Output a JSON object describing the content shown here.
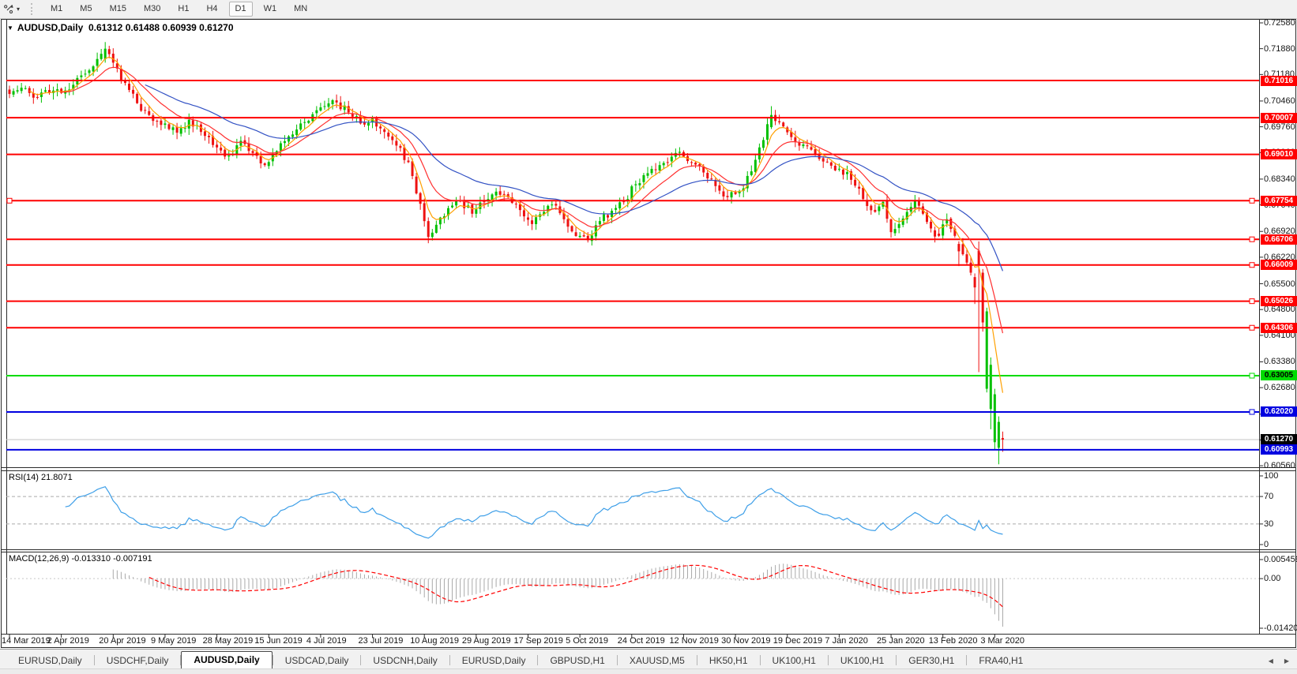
{
  "toolbar": {
    "timeframes": [
      "M1",
      "M5",
      "M15",
      "M30",
      "H1",
      "H4",
      "D1",
      "W1",
      "MN"
    ],
    "active_timeframe": "D1"
  },
  "chart": {
    "title": "AUDUSD,Daily",
    "ohlc": {
      "open": "0.61312",
      "high": "0.61488",
      "low": "0.60939",
      "close": "0.61270"
    }
  },
  "indicators": {
    "rsi_label": "RSI(14) 21.8071",
    "macd_label": "MACD(12,26,9) -0.013310 -0.007191"
  },
  "chart_data": {
    "type": "candlestick",
    "symbol": "AUDUSD",
    "timeframe": "Daily",
    "num_candles": 250,
    "last_candle": {
      "open": 0.61312,
      "high": 0.61488,
      "low": 0.60939,
      "close": 0.6127
    },
    "price_anchors": [
      [
        0,
        0.7065
      ],
      [
        3,
        0.7082
      ],
      [
        6,
        0.7055
      ],
      [
        9,
        0.7075
      ],
      [
        13,
        0.7068
      ],
      [
        16,
        0.709
      ],
      [
        19,
        0.712
      ],
      [
        22,
        0.716
      ],
      [
        24,
        0.7188
      ],
      [
        26,
        0.715
      ],
      [
        29,
        0.7095
      ],
      [
        32,
        0.704
      ],
      [
        35,
        0.7008
      ],
      [
        39,
        0.6985
      ],
      [
        42,
        0.696
      ],
      [
        45,
        0.6995
      ],
      [
        48,
        0.6962
      ],
      [
        52,
        0.692
      ],
      [
        55,
        0.6898
      ],
      [
        58,
        0.6938
      ],
      [
        61,
        0.6905
      ],
      [
        64,
        0.6872
      ],
      [
        67,
        0.691
      ],
      [
        70,
        0.695
      ],
      [
        73,
        0.6985
      ],
      [
        76,
        0.701
      ],
      [
        79,
        0.7032
      ],
      [
        82,
        0.7042
      ],
      [
        85,
        0.7015
      ],
      [
        88,
        0.6985
      ],
      [
        91,
        0.7
      ],
      [
        94,
        0.6962
      ],
      [
        97,
        0.6925
      ],
      [
        100,
        0.688
      ],
      [
        102,
        0.6795
      ],
      [
        104,
        0.672
      ],
      [
        105,
        0.6677
      ],
      [
        107,
        0.671
      ],
      [
        110,
        0.6755
      ],
      [
        113,
        0.6775
      ],
      [
        116,
        0.674
      ],
      [
        119,
        0.6772
      ],
      [
        122,
        0.68
      ],
      [
        125,
        0.6785
      ],
      [
        128,
        0.675
      ],
      [
        131,
        0.6712
      ],
      [
        134,
        0.6745
      ],
      [
        137,
        0.6762
      ],
      [
        140,
        0.6705
      ],
      [
        143,
        0.668
      ],
      [
        145,
        0.6668
      ],
      [
        148,
        0.672
      ],
      [
        151,
        0.6748
      ],
      [
        154,
        0.6772
      ],
      [
        157,
        0.682
      ],
      [
        160,
        0.685
      ],
      [
        163,
        0.6872
      ],
      [
        166,
        0.6895
      ],
      [
        168,
        0.6908
      ],
      [
        171,
        0.688
      ],
      [
        174,
        0.6852
      ],
      [
        177,
        0.6815
      ],
      [
        180,
        0.6785
      ],
      [
        183,
        0.6802
      ],
      [
        186,
        0.6855
      ],
      [
        189,
        0.694
      ],
      [
        191,
        0.7008
      ],
      [
        193,
        0.6988
      ],
      [
        196,
        0.6948
      ],
      [
        199,
        0.6928
      ],
      [
        202,
        0.69
      ],
      [
        205,
        0.688
      ],
      [
        208,
        0.6862
      ],
      [
        211,
        0.6832
      ],
      [
        214,
        0.678
      ],
      [
        217,
        0.6745
      ],
      [
        219,
        0.6772
      ],
      [
        221,
        0.669
      ],
      [
        223,
        0.6712
      ],
      [
        225,
        0.6745
      ],
      [
        227,
        0.6775
      ],
      [
        229,
        0.674
      ],
      [
        231,
        0.67
      ],
      [
        233,
        0.668
      ],
      [
        235,
        0.6725
      ],
      [
        237,
        0.668
      ],
      [
        239,
        0.663
      ],
      [
        241,
        0.658
      ],
      [
        242,
        0.654
      ],
      [
        243,
        0.66
      ],
      [
        244,
        0.6445
      ],
      [
        245,
        0.6475
      ],
      [
        246,
        0.633
      ],
      [
        247,
        0.625
      ],
      [
        248,
        0.6175
      ],
      [
        249,
        0.6127
      ]
    ],
    "special_candles": {
      "24": [
        0.716,
        0.7206,
        0.715,
        0.7188
      ],
      "105": [
        0.672,
        0.673,
        0.666,
        0.6677
      ],
      "145": [
        0.668,
        0.669,
        0.6662,
        0.6668
      ],
      "191": [
        0.6975,
        0.7032,
        0.697,
        0.7008
      ],
      "232": [
        0.6695,
        0.6705,
        0.6662,
        0.6678
      ],
      "238": [
        0.6658,
        0.6665,
        0.6598,
        0.6638
      ],
      "242": [
        0.6568,
        0.6578,
        0.6495,
        0.654
      ],
      "243": [
        0.664,
        0.6665,
        0.631,
        0.66
      ],
      "244": [
        0.658,
        0.659,
        0.642,
        0.6445
      ],
      "245": [
        0.6265,
        0.6485,
        0.6255,
        0.6475
      ],
      "246": [
        0.621,
        0.635,
        0.6155,
        0.633
      ],
      "247": [
        0.612,
        0.6265,
        0.61,
        0.625
      ],
      "248": [
        0.6105,
        0.619,
        0.606,
        0.6175
      ],
      "249": [
        0.61312,
        0.61488,
        0.60939,
        0.6127
      ]
    },
    "candle_colors": {
      "up": "#00C000",
      "down": "#EE1111"
    },
    "levels": [
      {
        "price": 0.71016,
        "color": "#FF0000",
        "handles": false
      },
      {
        "price": 0.70007,
        "color": "#FF0000",
        "handles": false
      },
      {
        "price": 0.6901,
        "color": "#FF0000",
        "handles": false
      },
      {
        "price": 0.67754,
        "color": "#FF0000",
        "handles": true,
        "left_handle": true
      },
      {
        "price": 0.66706,
        "color": "#FF0000",
        "handles": true
      },
      {
        "price": 0.66009,
        "color": "#FF0000",
        "handles": true
      },
      {
        "price": 0.65026,
        "color": "#FF0000",
        "handles": true
      },
      {
        "price": 0.64306,
        "color": "#FF0000",
        "handles": true
      },
      {
        "price": 0.63005,
        "color": "#00DC00",
        "text": "#000000",
        "handles": true
      },
      {
        "price": 0.6202,
        "color": "#0000E0",
        "handles": true
      },
      {
        "price": 0.60993,
        "color": "#0000E0",
        "handles": false
      }
    ],
    "current_price": {
      "price": 0.6127,
      "line_color": "#C4C4C4",
      "label_bg": "#000000"
    },
    "y_axis_ticks": [
      0.7258,
      0.7188,
      0.7118,
      0.7046,
      0.6976,
      0.6906,
      0.6834,
      0.6764,
      0.6692,
      0.6622,
      0.655,
      0.648,
      0.641,
      0.6338,
      0.6268,
      0.6196,
      0.6126,
      0.6056
    ],
    "x_axis_labels": [
      "14 Mar 2019",
      "2 Apr 2019",
      "20 Apr 2019",
      "9 May 2019",
      "28 May 2019",
      "15 Jun 2019",
      "4 Jul 2019",
      "23 Jul 2019",
      "10 Aug 2019",
      "29 Aug 2019",
      "17 Sep 2019",
      "5 Oct 2019",
      "24 Oct 2019",
      "12 Nov 2019",
      "30 Nov 2019",
      "19 Dec 2019",
      "7 Jan 2020",
      "25 Jan 2020",
      "13 Feb 2020",
      "3 Mar 2020"
    ],
    "moving_averages": [
      {
        "name": "fast",
        "period": 5,
        "color": "#FFA000"
      },
      {
        "name": "medium",
        "period": 13,
        "color": "#FF3030"
      },
      {
        "name": "slow",
        "period": 34,
        "color": "#3352C4"
      }
    ],
    "rsi": {
      "period": 14,
      "current": 21.8071,
      "range": [
        0,
        100
      ],
      "guides": [
        30,
        70
      ],
      "axis_ticks": [
        "100",
        "70",
        "30",
        "0"
      ],
      "color": "#3E9FE8",
      "guide_color": "#ABABAB"
    },
    "macd": {
      "fast": 12,
      "slow": 26,
      "signal": 9,
      "current_macd": -0.01331,
      "current_signal": -0.007191,
      "axis_ticks": [
        "0.005459",
        "0.00",
        "-0.014204"
      ],
      "axis_max": 0.005459,
      "axis_min": -0.014204,
      "histogram_color": "#A9A9A9",
      "signal_color": "#FF0000"
    }
  },
  "tabs": {
    "items": [
      "EURUSD,Daily",
      "USDCHF,Daily",
      "AUDUSD,Daily",
      "USDCAD,Daily",
      "USDCNH,Daily",
      "EURUSD,Daily",
      "GBPUSD,H1",
      "XAUUSD,M5",
      "HK50,H1",
      "UK100,H1",
      "UK100,H1",
      "GER30,H1",
      "FRA40,H1"
    ],
    "active_index": 2
  }
}
